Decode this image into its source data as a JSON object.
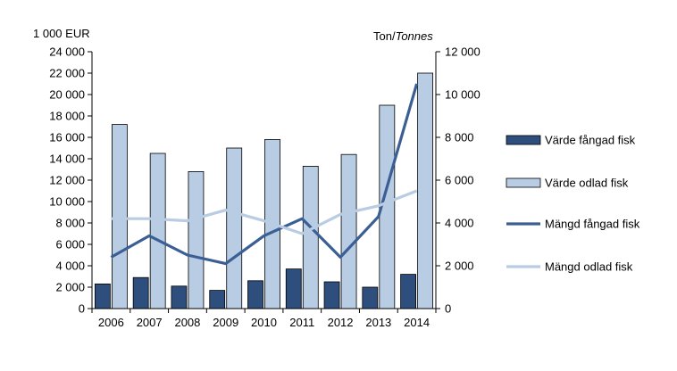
{
  "chart_data": {
    "type": "bar",
    "categories": [
      "2006",
      "2007",
      "2008",
      "2009",
      "2010",
      "2011",
      "2012",
      "2013",
      "2014"
    ],
    "y_left": {
      "unit_label": "1 000 EUR",
      "range": [
        0,
        24000
      ],
      "step": 2000,
      "tick_labels": [
        "0",
        "2 000",
        "4 000",
        "6 000",
        "8 000",
        "10 000",
        "12 000",
        "14 000",
        "16 000",
        "18 000",
        "20 000",
        "22 000",
        "24 000"
      ]
    },
    "y_right": {
      "unit_label_plain": "Ton/",
      "unit_label_italic": "Tonnes",
      "range": [
        0,
        12000
      ],
      "step": 2000,
      "tick_labels": [
        "0",
        "2 000",
        "4 000",
        "6 000",
        "8 000",
        "10 000",
        "12 000"
      ]
    },
    "series": [
      {
        "name": "Värde fångad fisk",
        "kind": "bar",
        "axis": "left",
        "color": "#2e4e7e",
        "values": [
          2300,
          2900,
          2100,
          1700,
          2600,
          3700,
          2500,
          2000,
          3200
        ]
      },
      {
        "name": "Värde odlad fisk",
        "kind": "bar",
        "axis": "left",
        "color": "#b8cce4",
        "values": [
          17200,
          14500,
          12800,
          15000,
          15800,
          13300,
          14400,
          19000,
          22000
        ]
      },
      {
        "name": "Mängd fångad fisk",
        "kind": "line",
        "axis": "right",
        "color": "#3b5f95",
        "values": [
          2400,
          3400,
          2500,
          2100,
          3400,
          4200,
          2400,
          4300,
          10500
        ]
      },
      {
        "name": "Mängd odlad fisk",
        "kind": "line",
        "axis": "right",
        "color": "#b8cce4",
        "values": [
          4200,
          4200,
          4100,
          4600,
          4100,
          3500,
          4400,
          4800,
          5500
        ]
      }
    ],
    "legend_position": "right",
    "grid": false
  }
}
